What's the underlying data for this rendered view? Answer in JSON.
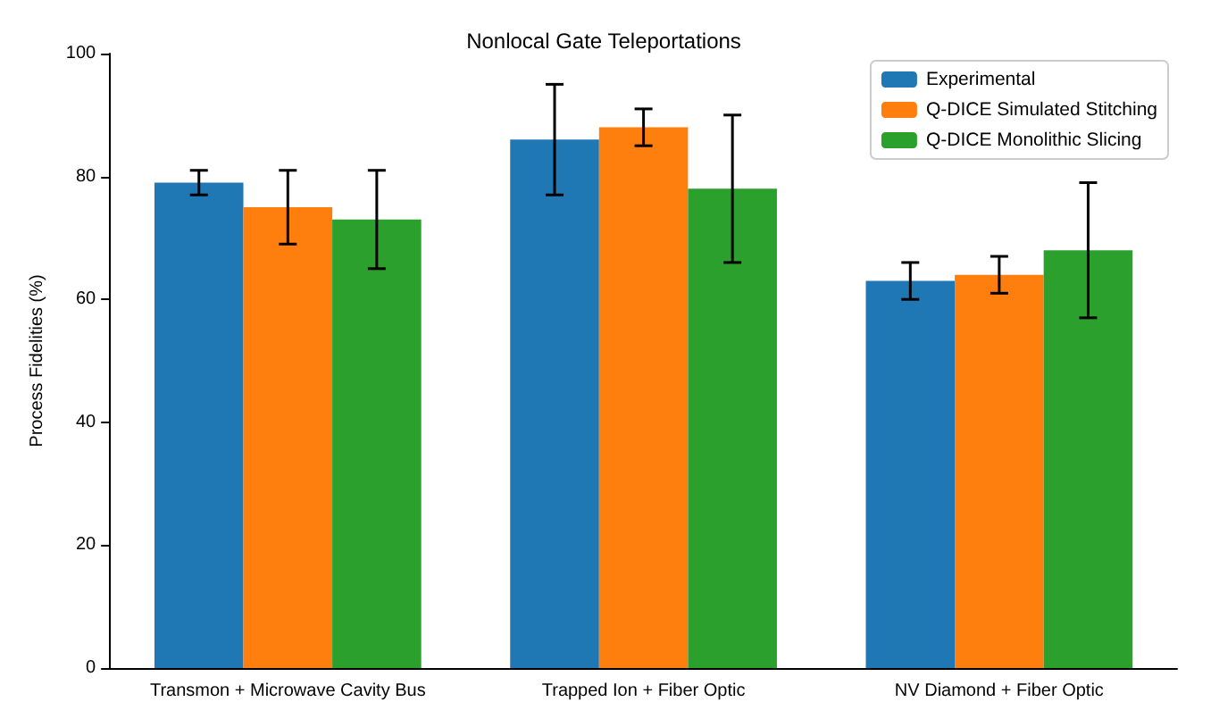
{
  "chart_data": {
    "type": "bar",
    "title": "Nonlocal Gate Teleportations",
    "ylabel": "Process Fidelities (%)",
    "categories": [
      "Transmon + Microwave Cavity Bus",
      "Trapped Ion + Fiber Optic",
      "NV Diamond + Fiber Optic"
    ],
    "series": [
      {
        "name": "Experimental",
        "color": "#1f77b4",
        "values": [
          79,
          86,
          63
        ],
        "errors": [
          2,
          9,
          3
        ]
      },
      {
        "name": "Q-DICE Simulated Stitching",
        "color": "#ff7f0e",
        "values": [
          75,
          88,
          64
        ],
        "errors": [
          6,
          3,
          3
        ]
      },
      {
        "name": "Q-DICE Monolithic Slicing",
        "color": "#2ca02c",
        "values": [
          73,
          78,
          68
        ],
        "errors": [
          8,
          12,
          11
        ]
      }
    ],
    "ylim": [
      0,
      100
    ],
    "yticks": [
      0,
      20,
      40,
      60,
      80,
      100
    ],
    "grid": false,
    "legend": "top right"
  }
}
